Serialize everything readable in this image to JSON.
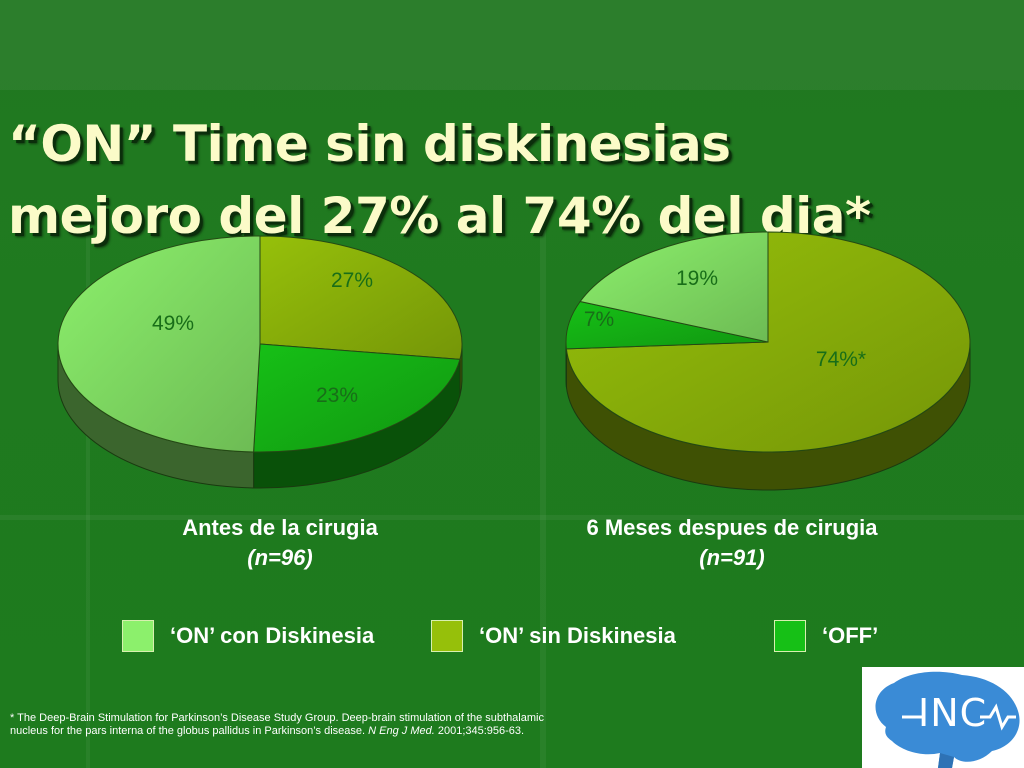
{
  "slide": {
    "title_line1": "“ON” Time sin diskinesias",
    "title_line2": "mejoro del 27% al 74% del dia*"
  },
  "colors": {
    "on_con": "#8cf06c",
    "on_sin": "#96c00a",
    "off": "#16c016",
    "label": "#186e18"
  },
  "chart_data": [
    {
      "type": "pie",
      "caption": "Antes de la cirugia",
      "n": "(n=96)",
      "slices": [
        {
          "name": "‘ON’ sin Diskinesia",
          "value": 27,
          "label": "27%"
        },
        {
          "name": "‘OFF’",
          "value": 23,
          "label": "23%"
        },
        {
          "name": "‘ON’ con Diskinesia",
          "value": 49,
          "label": "49%"
        }
      ]
    },
    {
      "type": "pie",
      "caption": "6 Meses despues de cirugia",
      "n": "(n=91)",
      "slices": [
        {
          "name": "‘ON’ sin Diskinesia",
          "value": 74,
          "label": "74%*"
        },
        {
          "name": "‘OFF’",
          "value": 7,
          "label": "7%"
        },
        {
          "name": "‘ON’ con Diskinesia",
          "value": 19,
          "label": "19%"
        }
      ]
    }
  ],
  "legend": [
    {
      "key": "on_con",
      "label": "‘ON’ con Diskinesia"
    },
    {
      "key": "on_sin",
      "label": "‘ON’ sin Diskinesia"
    },
    {
      "key": "off",
      "label": "‘OFF’"
    }
  ],
  "footnote": {
    "line1": "* The Deep-Brain Stimulation for Parkinson’s Disease Study Group. Deep-brain stimulation of the subthalamic",
    "line2_prefix": "nucleus for the pars interna of the globus pallidus in Parkinson’s disease.",
    "journal": "N Eng J Med.",
    "citation": "2001;345:956-63."
  },
  "logo": {
    "text": "INC"
  }
}
